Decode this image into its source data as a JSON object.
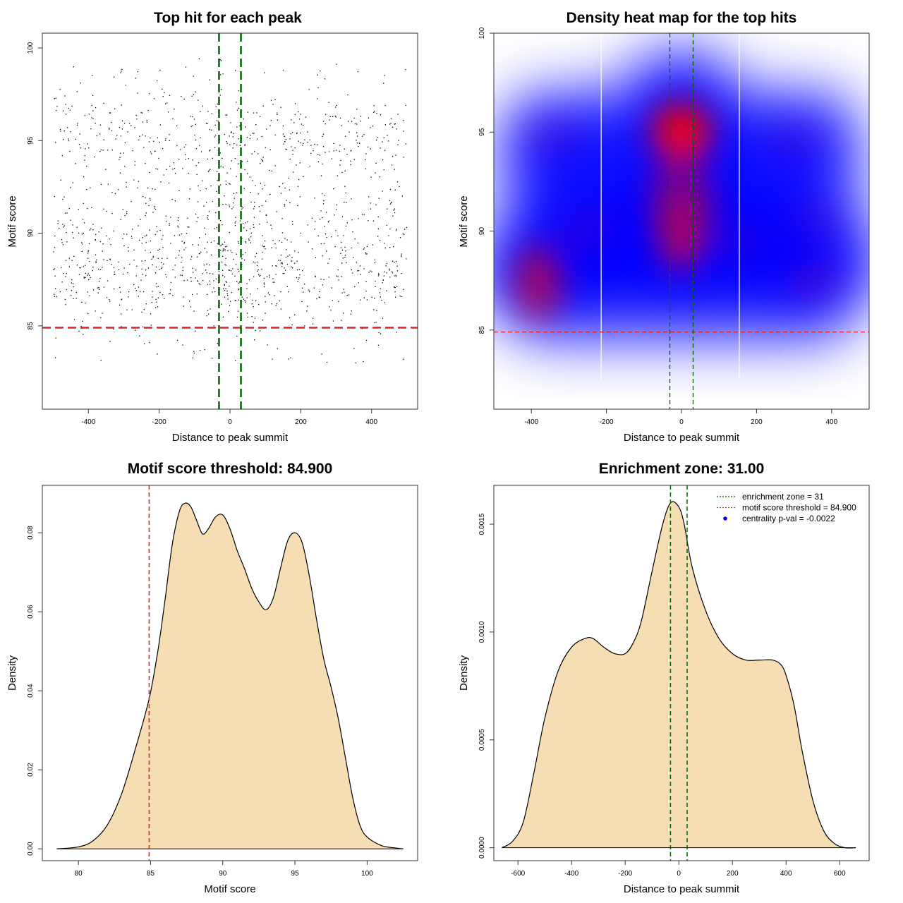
{
  "colors": {
    "threshold_line": "#dd2222",
    "zone_line": "#006400",
    "density_fill": "#f5deb3",
    "heat_low": "#ffffff",
    "heat_mid": "#0000ff",
    "heat_high": "#ff0000",
    "legend_dot": "#0000ff"
  },
  "chart_data": [
    {
      "id": "scatter",
      "type": "scatter",
      "title": "Top hit for each peak",
      "xlabel": "Distance to peak summit",
      "ylabel": "Motif score",
      "xlim": [
        -530,
        530
      ],
      "ylim": [
        80.5,
        100.8
      ],
      "xticks": [
        -400,
        -200,
        0,
        200,
        400
      ],
      "yticks": [
        85,
        90,
        95,
        100
      ],
      "threshold": 84.9,
      "zone": [
        -31,
        31
      ],
      "point_count": 1450,
      "note": "points are a dense random cloud: x uniform in [-500, 500], y mostly 83-99 with clusters near 87.5, 90 and 95"
    },
    {
      "id": "heatmap",
      "type": "heatmap",
      "title": "Density heat map for the top hits",
      "xlabel": "Distance to peak summit",
      "ylabel": "Motif score",
      "xlim": [
        -500,
        500
      ],
      "ylim": [
        81,
        100
      ],
      "xticks": [
        -400,
        -200,
        0,
        200,
        400
      ],
      "yticks": [
        85,
        90,
        95,
        100
      ],
      "threshold": 84.9,
      "zone": [
        -31,
        31
      ],
      "white_lines_x": [
        -214,
        154
      ],
      "hotspots": [
        {
          "x": 0,
          "y": 95,
          "weight": 1.0
        },
        {
          "x": 0,
          "y": 90,
          "weight": 0.75
        },
        {
          "x": -380,
          "y": 87.4,
          "weight": 0.6
        },
        {
          "x": -250,
          "y": 90,
          "weight": 0.45
        },
        {
          "x": 350,
          "y": 87.5,
          "weight": 0.5
        },
        {
          "x": 350,
          "y": 90.5,
          "weight": 0.35
        },
        {
          "x": -350,
          "y": 94.8,
          "weight": 0.35
        },
        {
          "x": 150,
          "y": 89.5,
          "weight": 0.35
        },
        {
          "x": 300,
          "y": 94.5,
          "weight": 0.3
        }
      ]
    },
    {
      "id": "score_density",
      "type": "area",
      "title": "Motif score threshold: 84.900",
      "xlabel": "Motif score",
      "ylabel": "Density",
      "xlim": [
        77.5,
        103.5
      ],
      "ylim": [
        -0.003,
        0.092
      ],
      "xticks": [
        80,
        85,
        90,
        95,
        100
      ],
      "yticks": [
        0.0,
        0.02,
        0.04,
        0.06,
        0.08
      ],
      "ytick_labels": [
        "0.00",
        "0.02",
        "0.04",
        "0.06",
        "0.08"
      ],
      "threshold": 84.9,
      "x": [
        78.5,
        80,
        81,
        82,
        83,
        84,
        84.9,
        85.5,
        86,
        86.5,
        87,
        87.4,
        87.8,
        88.2,
        88.6,
        89,
        89.5,
        90,
        90.5,
        91,
        91.5,
        92,
        92.5,
        93,
        93.5,
        94,
        94.5,
        95,
        95.5,
        96,
        96.5,
        97,
        97.5,
        98,
        98.5,
        99,
        99.5,
        100,
        101,
        102,
        102.5
      ],
      "y": [
        0.0,
        0.0005,
        0.002,
        0.006,
        0.014,
        0.026,
        0.038,
        0.05,
        0.063,
        0.077,
        0.0855,
        0.0875,
        0.0865,
        0.083,
        0.0797,
        0.081,
        0.084,
        0.0845,
        0.081,
        0.0755,
        0.071,
        0.066,
        0.0625,
        0.0605,
        0.0635,
        0.071,
        0.078,
        0.08,
        0.0775,
        0.069,
        0.058,
        0.048,
        0.041,
        0.033,
        0.023,
        0.013,
        0.006,
        0.003,
        0.0008,
        0.0002,
        0.0
      ]
    },
    {
      "id": "distance_density",
      "type": "area",
      "title": "Enrichment zone: 31.00",
      "xlabel": "Distance to peak summit",
      "ylabel": "Density",
      "xlim": [
        -690,
        710
      ],
      "ylim": [
        -6e-05,
        0.00168
      ],
      "xticks": [
        -600,
        -400,
        -200,
        0,
        200,
        400,
        600
      ],
      "yticks": [
        0.0,
        0.0005,
        0.001,
        0.0015
      ],
      "ytick_labels": [
        "0.0000",
        "0.0005",
        "0.0010",
        "0.0015"
      ],
      "zone": [
        -31,
        31
      ],
      "x": [
        -660,
        -620,
        -580,
        -540,
        -500,
        -450,
        -400,
        -350,
        -320,
        -280,
        -240,
        -200,
        -170,
        -140,
        -100,
        -60,
        -30,
        0,
        20,
        50,
        100,
        150,
        200,
        250,
        300,
        350,
        380,
        400,
        430,
        460,
        500,
        540,
        580,
        620,
        660
      ],
      "y": [
        0.0,
        3e-05,
        0.00012,
        0.00035,
        0.0006,
        0.00082,
        0.00093,
        0.00097,
        0.00097,
        0.00093,
        0.0009,
        0.0009,
        0.00095,
        0.00105,
        0.00128,
        0.0015,
        0.0016,
        0.00158,
        0.0015,
        0.0013,
        0.0011,
        0.00097,
        0.0009,
        0.00087,
        0.00087,
        0.00087,
        0.00085,
        0.0008,
        0.00066,
        0.00045,
        0.00022,
        8e-05,
        2e-05,
        0.0,
        0.0
      ],
      "legend": [
        {
          "label": "enrichment zone = 31",
          "style": "dotted",
          "color": "#006400"
        },
        {
          "label": "motif score threshold = 84.900",
          "style": "dotted",
          "color": "#dd2222"
        },
        {
          "label": "centrality p-val = -0.0022",
          "style": "dot",
          "color": "#0000ff"
        }
      ]
    }
  ]
}
